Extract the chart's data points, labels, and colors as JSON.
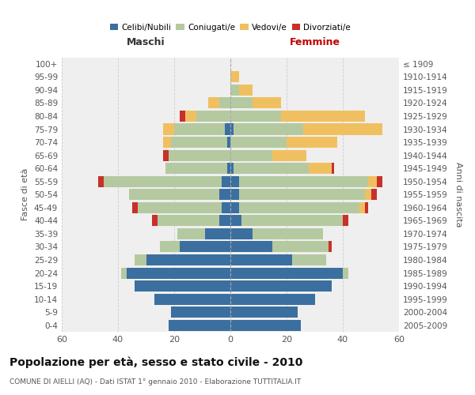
{
  "age_groups": [
    "0-4",
    "5-9",
    "10-14",
    "15-19",
    "20-24",
    "25-29",
    "30-34",
    "35-39",
    "40-44",
    "45-49",
    "50-54",
    "55-59",
    "60-64",
    "65-69",
    "70-74",
    "75-79",
    "80-84",
    "85-89",
    "90-94",
    "95-99",
    "100+"
  ],
  "birth_years": [
    "2005-2009",
    "2000-2004",
    "1995-1999",
    "1990-1994",
    "1985-1989",
    "1980-1984",
    "1975-1979",
    "1970-1974",
    "1965-1969",
    "1960-1964",
    "1955-1959",
    "1950-1954",
    "1945-1949",
    "1940-1944",
    "1935-1939",
    "1930-1934",
    "1925-1929",
    "1920-1924",
    "1915-1919",
    "1910-1914",
    "≤ 1909"
  ],
  "males": {
    "celibi": [
      22,
      21,
      27,
      34,
      37,
      30,
      18,
      9,
      4,
      3,
      4,
      3,
      1,
      0,
      1,
      2,
      0,
      0,
      0,
      0,
      0
    ],
    "coniugati": [
      0,
      0,
      0,
      0,
      2,
      4,
      7,
      10,
      22,
      30,
      32,
      42,
      22,
      22,
      20,
      18,
      12,
      4,
      0,
      0,
      0
    ],
    "vedovi": [
      0,
      0,
      0,
      0,
      0,
      0,
      0,
      0,
      0,
      0,
      0,
      0,
      0,
      0,
      3,
      4,
      4,
      4,
      0,
      0,
      0
    ],
    "divorziati": [
      0,
      0,
      0,
      0,
      0,
      0,
      0,
      0,
      2,
      2,
      0,
      2,
      0,
      2,
      0,
      0,
      2,
      0,
      0,
      0,
      0
    ]
  },
  "females": {
    "nubili": [
      25,
      24,
      30,
      36,
      40,
      22,
      15,
      8,
      4,
      3,
      3,
      3,
      1,
      0,
      0,
      1,
      0,
      0,
      0,
      0,
      0
    ],
    "coniugate": [
      0,
      0,
      0,
      0,
      2,
      12,
      20,
      25,
      36,
      43,
      45,
      46,
      27,
      15,
      20,
      25,
      18,
      8,
      3,
      0,
      0
    ],
    "vedove": [
      0,
      0,
      0,
      0,
      0,
      0,
      0,
      0,
      0,
      2,
      2,
      3,
      8,
      12,
      18,
      28,
      30,
      10,
      5,
      3,
      0
    ],
    "divorziate": [
      0,
      0,
      0,
      0,
      0,
      0,
      1,
      0,
      2,
      1,
      2,
      2,
      1,
      0,
      0,
      0,
      0,
      0,
      0,
      0,
      0
    ]
  },
  "colors": {
    "celibi_nubili": "#3b6fa0",
    "coniugati": "#b5c9a1",
    "vedovi": "#f0c060",
    "divorziati": "#c8302a"
  },
  "xlim": 60,
  "title": "Popolazione per età, sesso e stato civile - 2010",
  "subtitle": "COMUNE DI AIELLI (AQ) - Dati ISTAT 1° gennaio 2010 - Elaborazione TUTTITALIA.IT",
  "xlabel_left": "Maschi",
  "xlabel_right": "Femmine",
  "ylabel_left": "Fasce di età",
  "ylabel_right": "Anni di nascita",
  "legend_labels": [
    "Celibi/Nubili",
    "Coniugati/e",
    "Vedovi/e",
    "Divorziati/e"
  ],
  "bg_color": "#ffffff",
  "plot_bg": "#efefef",
  "grid_color": "#cccccc",
  "bar_height": 0.85
}
